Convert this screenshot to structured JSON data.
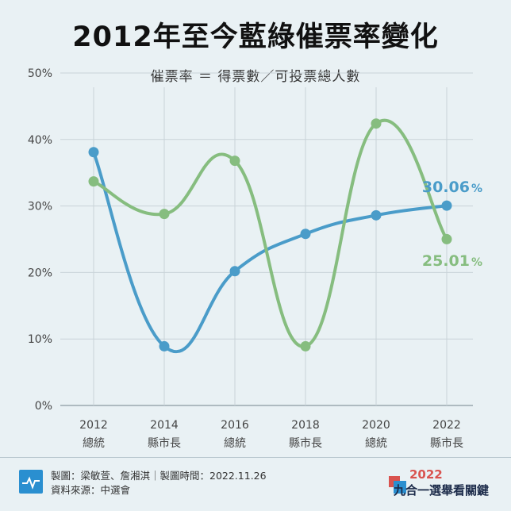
{
  "title": "2012年至今藍綠催票率變化",
  "subtitle": "催票率 ＝ 得票數／可投票總人數",
  "colors": {
    "blue": "#4a9cc9",
    "green": "#86bd7f",
    "grid": "#c9d3d8",
    "text": "#444444"
  },
  "chart_data": {
    "type": "line",
    "x": [
      "2012",
      "2014",
      "2016",
      "2018",
      "2020",
      "2022"
    ],
    "x_sublabels": [
      "總統",
      "縣市長",
      "總統",
      "縣市長",
      "總統",
      "縣市長"
    ],
    "ylim": [
      0,
      50
    ],
    "y_ticks": [
      "0%",
      "10%",
      "20%",
      "30%",
      "40%",
      "50%"
    ],
    "grid": true,
    "series": [
      {
        "color": "#4a9cc9",
        "values": [
          38.1,
          8.9,
          20.2,
          25.8,
          28.6,
          30.06
        ]
      },
      {
        "color": "#86bd7f",
        "values": [
          33.7,
          28.8,
          36.8,
          8.9,
          42.4,
          25.01
        ]
      }
    ],
    "annotations": [
      {
        "series": 0,
        "text": "30.06",
        "unit": "%"
      },
      {
        "series": 1,
        "text": "25.01",
        "unit": "%"
      }
    ]
  },
  "footer": {
    "credit": "製圖：梁敏萱、詹湘淇｜製圖時間：2022.11.26",
    "source": "資料來源：中選會",
    "logo_year": "2022",
    "logo_name": "九合一選舉看關鍵"
  }
}
